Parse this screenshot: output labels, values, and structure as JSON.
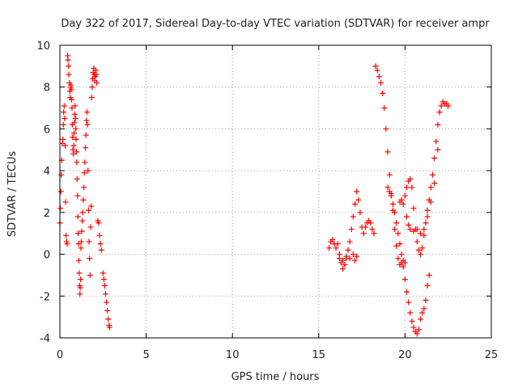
{
  "chart_data": {
    "type": "scatter",
    "title": "Day 322 of 2017, Sidereal Day-to-day VTEC variation (SDTVAR) for receiver ampr",
    "xlabel": "GPS time / hours",
    "ylabel": "SDTVAR / TECUs",
    "xlim": [
      0,
      25
    ],
    "ylim": [
      -4,
      10
    ],
    "xticks": [
      "0",
      "5",
      "10",
      "15",
      "20",
      "25"
    ],
    "yticks": [
      "-4",
      "-2",
      "0",
      "2",
      "4",
      "6",
      "8",
      "10"
    ],
    "grid": true,
    "marker": "plus",
    "color": "#ff0000",
    "series": [
      {
        "name": "",
        "points": [
          [
            0.0,
            1.5
          ],
          [
            0.03,
            2.2
          ],
          [
            0.06,
            3.0
          ],
          [
            0.08,
            3.8
          ],
          [
            0.11,
            4.5
          ],
          [
            0.14,
            5.3
          ],
          [
            0.17,
            5.5
          ],
          [
            0.2,
            6.2
          ],
          [
            0.22,
            6.8
          ],
          [
            0.25,
            7.1
          ],
          [
            0.28,
            6.5
          ],
          [
            0.31,
            5.2
          ],
          [
            0.33,
            2.5
          ],
          [
            0.36,
            0.9
          ],
          [
            0.39,
            0.6
          ],
          [
            0.42,
            0.5
          ],
          [
            0.45,
            9.5
          ],
          [
            0.47,
            9.3
          ],
          [
            0.5,
            9.0
          ],
          [
            0.52,
            8.6
          ],
          [
            0.55,
            8.2
          ],
          [
            0.58,
            7.8
          ],
          [
            0.6,
            7.5
          ],
          [
            0.62,
            8.0
          ],
          [
            0.64,
            8.1
          ],
          [
            0.66,
            7.9
          ],
          [
            0.68,
            7.4
          ],
          [
            0.7,
            7.0
          ],
          [
            0.72,
            6.2
          ],
          [
            0.74,
            5.6
          ],
          [
            0.76,
            5.0
          ],
          [
            0.78,
            4.8
          ],
          [
            0.8,
            5.2
          ],
          [
            0.82,
            5.8
          ],
          [
            0.84,
            6.3
          ],
          [
            0.86,
            6.7
          ],
          [
            0.88,
            7.1
          ],
          [
            0.9,
            6.5
          ],
          [
            0.92,
            6.0
          ],
          [
            0.94,
            5.5
          ],
          [
            0.96,
            4.9
          ],
          [
            0.98,
            4.4
          ],
          [
            1.0,
            3.6
          ],
          [
            1.02,
            2.8
          ],
          [
            1.04,
            1.8
          ],
          [
            1.06,
            1.0
          ],
          [
            1.08,
            0.5
          ],
          [
            1.1,
            -0.3
          ],
          [
            1.12,
            -0.9
          ],
          [
            1.14,
            -1.5
          ],
          [
            1.16,
            -1.9
          ],
          [
            1.18,
            -1.6
          ],
          [
            1.2,
            -1.2
          ],
          [
            1.22,
            0.3
          ],
          [
            1.24,
            0.6
          ],
          [
            1.27,
            1.1
          ],
          [
            1.3,
            1.6
          ],
          [
            1.33,
            2.0
          ],
          [
            1.36,
            2.6
          ],
          [
            1.39,
            3.2
          ],
          [
            1.42,
            3.9
          ],
          [
            1.45,
            4.4
          ],
          [
            1.48,
            5.1
          ],
          [
            1.51,
            5.7
          ],
          [
            1.54,
            6.4
          ],
          [
            1.57,
            6.8
          ],
          [
            1.6,
            6.2
          ],
          [
            1.63,
            4.0
          ],
          [
            1.66,
            2.1
          ],
          [
            1.69,
            0.6
          ],
          [
            1.72,
            -0.2
          ],
          [
            1.75,
            -1.0
          ],
          [
            1.78,
            1.3
          ],
          [
            1.81,
            2.3
          ],
          [
            1.84,
            7.5
          ],
          [
            1.87,
            8.0
          ],
          [
            1.9,
            8.4
          ],
          [
            1.93,
            8.7
          ],
          [
            1.96,
            8.9
          ],
          [
            1.99,
            8.6
          ],
          [
            2.02,
            8.3
          ],
          [
            2.05,
            8.5
          ],
          [
            2.08,
            8.8
          ],
          [
            2.11,
            8.6
          ],
          [
            2.14,
            8.2
          ],
          [
            2.2,
            1.6
          ],
          [
            2.25,
            1.5
          ],
          [
            2.3,
            0.9
          ],
          [
            2.35,
            0.5
          ],
          [
            2.4,
            0.2
          ],
          [
            2.5,
            -0.9
          ],
          [
            2.55,
            -1.2
          ],
          [
            2.6,
            -1.5
          ],
          [
            2.65,
            -1.9
          ],
          [
            2.7,
            -2.3
          ],
          [
            2.75,
            -2.7
          ],
          [
            2.8,
            -3.1
          ],
          [
            2.85,
            -3.4
          ],
          [
            2.88,
            -3.5
          ],
          [
            15.6,
            0.3
          ],
          [
            15.7,
            0.6
          ],
          [
            15.8,
            0.7
          ],
          [
            15.9,
            0.5
          ],
          [
            16.0,
            0.3
          ],
          [
            16.1,
            0.5
          ],
          [
            16.2,
            0.0
          ],
          [
            16.3,
            -0.4
          ],
          [
            16.4,
            -0.7
          ],
          [
            16.5,
            -0.5
          ],
          [
            16.6,
            -0.2
          ],
          [
            16.7,
            0.2
          ],
          [
            16.8,
            0.6
          ],
          [
            16.9,
            1.2
          ],
          [
            17.0,
            1.8
          ],
          [
            17.1,
            2.4
          ],
          [
            17.2,
            3.0
          ],
          [
            17.3,
            2.6
          ],
          [
            17.4,
            2.0
          ],
          [
            17.5,
            1.3
          ],
          [
            17.6,
            1.0
          ],
          [
            17.7,
            1.3
          ],
          [
            17.8,
            1.5
          ],
          [
            17.9,
            1.6
          ],
          [
            18.0,
            1.5
          ],
          [
            18.1,
            1.2
          ],
          [
            18.2,
            1.0
          ],
          [
            16.2,
            -0.2
          ],
          [
            16.4,
            -0.3
          ],
          [
            16.6,
            -0.1
          ],
          [
            16.8,
            -0.2
          ],
          [
            17.0,
            0.0
          ],
          [
            17.1,
            -0.3
          ],
          [
            17.2,
            -0.1
          ],
          [
            18.3,
            9.0
          ],
          [
            18.4,
            8.8
          ],
          [
            18.5,
            8.5
          ],
          [
            18.6,
            8.2
          ],
          [
            18.7,
            7.7
          ],
          [
            18.8,
            7.0
          ],
          [
            18.9,
            6.0
          ],
          [
            19.0,
            4.9
          ],
          [
            19.1,
            3.8
          ],
          [
            19.2,
            2.9
          ],
          [
            19.3,
            2.1
          ],
          [
            19.4,
            1.2
          ],
          [
            19.5,
            0.4
          ],
          [
            19.6,
            -0.2
          ],
          [
            19.7,
            -0.5
          ],
          [
            19.8,
            -0.4
          ],
          [
            19.9,
            -0.3
          ],
          [
            20.0,
            -0.4
          ],
          [
            19.0,
            3.2
          ],
          [
            19.1,
            3.0
          ],
          [
            19.2,
            2.8
          ],
          [
            19.3,
            2.4
          ],
          [
            19.4,
            2.0
          ],
          [
            19.5,
            1.5
          ],
          [
            19.6,
            1.0
          ],
          [
            19.7,
            0.5
          ],
          [
            19.8,
            0.0
          ],
          [
            19.9,
            -0.6
          ],
          [
            20.0,
            -1.2
          ],
          [
            20.1,
            -1.8
          ],
          [
            20.2,
            -2.3
          ],
          [
            20.3,
            -2.8
          ],
          [
            20.4,
            -3.2
          ],
          [
            20.5,
            -3.5
          ],
          [
            20.6,
            -3.7
          ],
          [
            20.7,
            -3.8
          ],
          [
            20.8,
            -3.6
          ],
          [
            20.9,
            -3.1
          ],
          [
            21.0,
            -2.8
          ],
          [
            21.1,
            -2.6
          ],
          [
            21.2,
            -2.2
          ],
          [
            21.3,
            -1.5
          ],
          [
            21.4,
            -1.0
          ],
          [
            19.7,
            2.5
          ],
          [
            19.8,
            2.6
          ],
          [
            19.9,
            2.4
          ],
          [
            20.0,
            2.8
          ],
          [
            20.1,
            3.2
          ],
          [
            20.2,
            3.5
          ],
          [
            20.3,
            3.6
          ],
          [
            20.4,
            3.2
          ],
          [
            20.5,
            2.2
          ],
          [
            20.6,
            1.2
          ],
          [
            20.7,
            0.6
          ],
          [
            20.8,
            0.2
          ],
          [
            20.9,
            0.0
          ],
          [
            21.0,
            0.3
          ],
          [
            21.1,
            0.9
          ],
          [
            21.2,
            1.5
          ],
          [
            21.3,
            2.1
          ],
          [
            21.4,
            2.6
          ],
          [
            21.5,
            3.2
          ],
          [
            21.6,
            3.8
          ],
          [
            21.7,
            4.6
          ],
          [
            21.8,
            5.4
          ],
          [
            21.9,
            6.2
          ],
          [
            22.0,
            6.8
          ],
          [
            22.1,
            7.1
          ],
          [
            22.2,
            7.3
          ],
          [
            22.3,
            7.2
          ],
          [
            22.4,
            7.2
          ],
          [
            22.5,
            7.1
          ],
          [
            20.1,
            1.8
          ],
          [
            20.2,
            1.4
          ],
          [
            20.3,
            1.2
          ],
          [
            20.5,
            1.1
          ],
          [
            20.7,
            1.2
          ],
          [
            20.9,
            1.0
          ],
          [
            21.1,
            1.2
          ],
          [
            21.3,
            1.8
          ],
          [
            21.5,
            2.5
          ],
          [
            21.7,
            3.4
          ],
          [
            21.9,
            5.0
          ]
        ]
      }
    ]
  }
}
